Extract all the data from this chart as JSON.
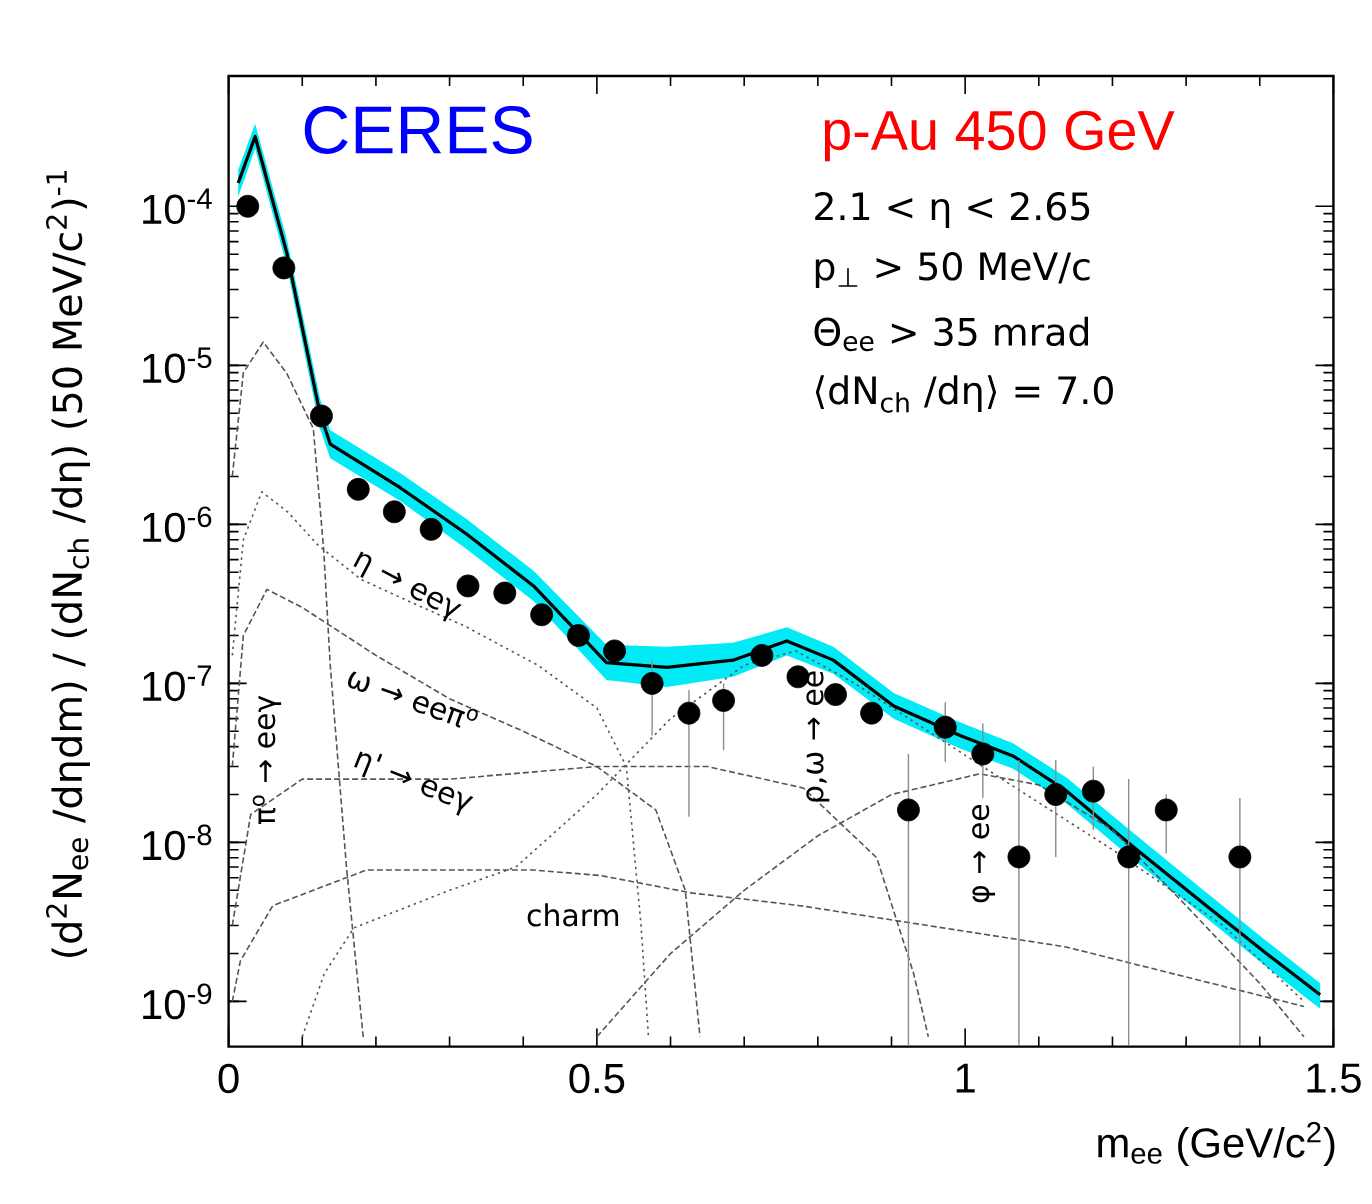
{
  "chart_data": {
    "type": "scatter",
    "title": "CERES",
    "subtitle": "p-Au 450 GeV",
    "xlabel": "m$_{ee}$ (GeV/c$^{2}$)",
    "ylabel": "(d$^{2}$N$_{ee}$ /dηdm) / (dN$_{ch}$ /dη) (50 MeV/c$^{2}$)$^{-1}$",
    "annotations": [
      "2.1 < η < 2.65",
      "p$_{⊥}$ > 50 MeV/c",
      "Θ$_{ee}$ > 35 mrad",
      "⟨dN$_{ch}$ /dη⟩ = 7.0"
    ],
    "log": true,
    "xlim": [
      0,
      1.5
    ],
    "ylim": [
      5.2e-10,
      0.00066
    ],
    "xticks": [
      0,
      0.5,
      1,
      1.5
    ],
    "yticks": [
      {
        "value": 1e-09,
        "label": "10$^{-9}$"
      },
      {
        "value": 1e-08,
        "label": "10$^{-8}$"
      },
      {
        "value": 1e-07,
        "label": "10$^{-7}$"
      },
      {
        "value": 1e-06,
        "label": "10$^{-6}$"
      },
      {
        "value": 1e-05,
        "label": "10$^{-5}$"
      },
      {
        "value": 0.0001,
        "label": "10$^{-4}$"
      }
    ],
    "series": [
      {
        "color": "#000000",
        "marker": "circle",
        "x": [
          0.026,
          0.075,
          0.126,
          0.176,
          0.225,
          0.275,
          0.325,
          0.375,
          0.425,
          0.475,
          0.524,
          0.575,
          0.625,
          0.672,
          0.724,
          0.773,
          0.824,
          0.873,
          0.923,
          0.973,
          1.024,
          1.073,
          1.123,
          1.174,
          1.222,
          1.273,
          1.373
        ],
        "values": [
          0.0001,
          4.1e-05,
          4.8e-06,
          1.66e-06,
          1.2e-06,
          9.3e-07,
          4.1e-07,
          3.7e-07,
          2.7e-07,
          2e-07,
          1.6e-07,
          1e-07,
          6.5e-08,
          7.8e-08,
          1.5e-07,
          1.1e-07,
          8.5e-08,
          6.5e-08,
          1.6e-08,
          5.3e-08,
          3.6e-08,
          8.1e-09,
          2e-08,
          2.1e-08,
          8.1e-09,
          1.6e-08,
          8.1e-09
        ],
        "errors": [
          null,
          null,
          null,
          null,
          null,
          null,
          null,
          null,
          null,
          null,
          null,
          [
            4.7e-08,
            1.4e-07
          ],
          [
            1.45e-08,
            9.1e-08
          ],
          [
            3.8e-08,
            1e-07
          ],
          null,
          null,
          null,
          null,
          [
            5.3e-10,
            3.6e-08
          ],
          [
            3.2e-08,
            7.6e-08
          ],
          [
            1.9e-08,
            5.6e-08
          ],
          [
            5.3e-10,
            3.3e-08
          ],
          [
            8.1e-09,
            3.3e-08
          ],
          [
            1.2e-08,
            3e-08
          ],
          [
            5.3e-10,
            2.5e-08
          ],
          [
            8.5e-09,
            2e-08
          ],
          [
            5.3e-10,
            1.9e-08
          ]
        ]
      },
      {
        "type": "line",
        "color": "#000000",
        "line_style": "solid",
        "x": [
          0.013,
          0.036,
          0.079,
          0.124,
          0.138,
          0.233,
          0.323,
          0.414,
          0.513,
          0.595,
          0.685,
          0.758,
          0.821,
          0.903,
          0.993,
          1.065,
          1.138,
          1.228,
          1.319,
          1.409,
          1.482
        ],
        "values": [
          0.00014,
          0.000275,
          5.1e-05,
          5e-06,
          3.2e-06,
          1.7e-06,
          8.7e-07,
          4.1e-07,
          1.35e-07,
          1.26e-07,
          1.4e-07,
          1.85e-07,
          1.4e-07,
          7.2e-08,
          4.7e-08,
          3.5e-08,
          2.1e-08,
          9.4e-09,
          4.3e-09,
          2e-09,
          1.1e-09
        ],
        "lower": [
          0.000115,
          0.00023,
          4.2e-05,
          4e-06,
          2.6e-06,
          1.4e-06,
          7e-07,
          3.3e-07,
          1.05e-07,
          9.5e-08,
          1.1e-07,
          1.5e-07,
          1.15e-07,
          6e-08,
          3.9e-08,
          2.9e-08,
          1.75e-08,
          7.8e-09,
          3.6e-09,
          1.65e-09,
          9e-10
        ],
        "upper": [
          0.00017,
          0.00033,
          6.2e-05,
          6.2e-06,
          3.9e-06,
          2.1e-06,
          1.08e-06,
          5.1e-07,
          1.75e-07,
          1.7e-07,
          1.8e-07,
          2.25e-07,
          1.7e-07,
          8.7e-08,
          5.7e-08,
          4.2e-08,
          2.55e-08,
          1.15e-08,
          5.2e-09,
          2.4e-09,
          1.3e-09
        ]
      },
      {
        "type": "line",
        "name": "π$^{o}$ → eeγ",
        "color": "#555555",
        "line_style": "dashed",
        "x": [
          0.005,
          0.02,
          0.047,
          0.079,
          0.115,
          0.129,
          0.138,
          0.16,
          0.183
        ],
        "values": [
          2e-06,
          9e-06,
          1.4e-05,
          8.9e-06,
          4e-06,
          7e-07,
          1.3e-07,
          7e-09,
          5.8e-10
        ]
      },
      {
        "type": "line",
        "name": "η → eeγ",
        "color": "#555555",
        "line_style": "dotted",
        "x": [
          0.005,
          0.02,
          0.045,
          0.08,
          0.12,
          0.18,
          0.25,
          0.32,
          0.42,
          0.5,
          0.54,
          0.56,
          0.57
        ],
        "values": [
          1.5e-07,
          8e-07,
          1.6e-06,
          1.2e-06,
          7.5e-07,
          4.5e-07,
          3.2e-07,
          2.3e-07,
          1.3e-07,
          7e-08,
          3e-08,
          3e-09,
          6e-10
        ]
      },
      {
        "type": "line",
        "name": "ω → eeπ$^{o}$",
        "color": "#555555",
        "line_style": "dashed",
        "x": [
          0.005,
          0.02,
          0.052,
          0.1,
          0.2,
          0.3,
          0.4,
          0.5,
          0.58,
          0.62,
          0.64
        ],
        "values": [
          3e-08,
          2e-07,
          3.9e-07,
          3e-07,
          1.5e-07,
          8e-08,
          5e-08,
          3e-08,
          1.6e-08,
          5e-09,
          6e-10
        ]
      },
      {
        "type": "line",
        "name": "η' → eeγ",
        "color": "#555555",
        "line_style": "dashed",
        "x": [
          0.005,
          0.03,
          0.1,
          0.3,
          0.5,
          0.65,
          0.78,
          0.88,
          0.93,
          0.95
        ],
        "values": [
          3e-09,
          1.5e-08,
          2.5e-08,
          2.5e-08,
          3e-08,
          3e-08,
          2.2e-08,
          8e-09,
          1.5e-09,
          6e-10
        ]
      },
      {
        "type": "line",
        "name": "ρ,ω → ee",
        "color": "#555555",
        "line_style": "dotted",
        "x": [
          0.1,
          0.13,
          0.17,
          0.3,
          0.39,
          0.5,
          0.6,
          0.7,
          0.77,
          0.85,
          0.95,
          1.05,
          1.2,
          1.35,
          1.46
        ],
        "values": [
          6e-10,
          1.5e-09,
          2.9e-09,
          5e-09,
          7e-09,
          2e-08,
          6e-08,
          1.3e-07,
          1.6e-07,
          1e-07,
          5e-08,
          2.5e-08,
          9e-09,
          3e-09,
          1e-09
        ]
      },
      {
        "type": "line",
        "name": "φ → ee",
        "color": "#555555",
        "line_style": "dashed",
        "x": [
          0.5,
          0.6,
          0.7,
          0.8,
          0.9,
          1.02,
          1.1,
          1.2,
          1.3,
          1.4,
          1.46
        ],
        "values": [
          6e-10,
          2e-09,
          5e-09,
          1.1e-08,
          2e-08,
          2.7e-08,
          2.3e-08,
          1.2e-08,
          4e-09,
          1.3e-09,
          6e-10
        ]
      },
      {
        "type": "line",
        "name": "charm",
        "color": "#555555",
        "line_style": "dashed",
        "x": [
          0.005,
          0.016,
          0.06,
          0.187,
          0.414,
          0.504,
          0.63,
          0.776,
          1.137,
          1.46
        ],
        "values": [
          1e-09,
          1.8e-09,
          4e-09,
          6.7e-09,
          6.7e-09,
          6.2e-09,
          4.8e-09,
          4e-09,
          2.2e-09,
          9.3e-10
        ]
      }
    ]
  }
}
